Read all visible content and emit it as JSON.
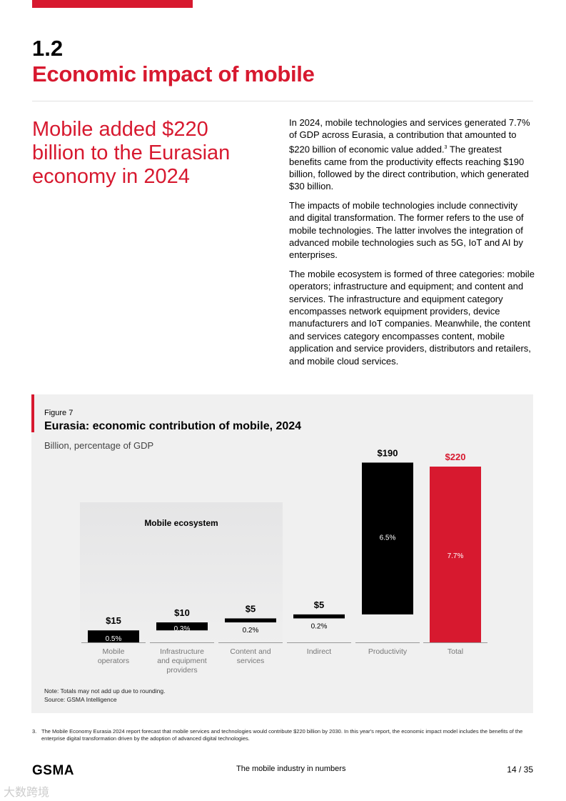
{
  "section": {
    "number": "1.2",
    "title": "Economic impact of mobile"
  },
  "lead": "Mobile added $220 billion to the Eurasian economy in 2024",
  "body": [
    "In 2024, mobile technologies and services generated 7.7% of GDP across Eurasia, a contribution that amounted to $220 billion of economic value added.",
    "The impacts of mobile technologies include connectivity and digital transformation. The former refers to the use of mobile technologies. The latter involves the integration of advanced mobile technologies such as 5G, IoT and AI by enterprises.",
    "The mobile ecosystem is formed of three categories: mobile operators; infrastructure and equipment; and content and services. The infrastructure and equipment category encompasses network equipment providers, device manufacturers and IoT companies. Meanwhile, the content and services category encompasses content, mobile application and service providers, distributors and retailers, and mobile cloud services."
  ],
  "body_p1_footref": "3",
  "body_p1_tail": "The greatest benefits came from the productivity effects reaching $190 billion, followed by the direct contribution, which generated $30 billion.",
  "figure": {
    "label": "Figure 7",
    "title": "Eurasia: economic contribution of mobile, 2024",
    "subtitle": "Billion, percentage of GDP",
    "group_label": "Mobile ecosystem",
    "note": "Note: Totals may not add up due to rounding.",
    "source": "Source: GSMA Intelligence"
  },
  "chart_data": {
    "type": "waterfall",
    "categories": [
      "Mobile operators",
      "Infrastructure and equipment providers",
      "Content and services",
      "Indirect",
      "Productivity",
      "Total"
    ],
    "values": [
      15,
      10,
      5,
      5,
      190,
      220
    ],
    "value_labels": [
      "$15",
      "$10",
      "$5",
      "$5",
      "$190",
      "$220"
    ],
    "gdp_share_labels": [
      "0.5%",
      "0.3%",
      "0.2%",
      "0.2%",
      "6.5%",
      "7.7%"
    ],
    "colors": {
      "bar": "#000000",
      "total": "#d7192f"
    },
    "grid": false
  },
  "footnote": {
    "number": "3.",
    "text": "The Mobile Economy Eurasia 2024 report forecast that mobile services and technologies would contribute $220 billion by 2030. In this year's report, the economic impact model includes the benefits of the enterprise digital transformation driven by the adoption of advanced digital technologies."
  },
  "footer": {
    "logo": "GSMA",
    "title": "The mobile industry in numbers",
    "page": "14 / 35"
  },
  "watermark": "大数跨境"
}
